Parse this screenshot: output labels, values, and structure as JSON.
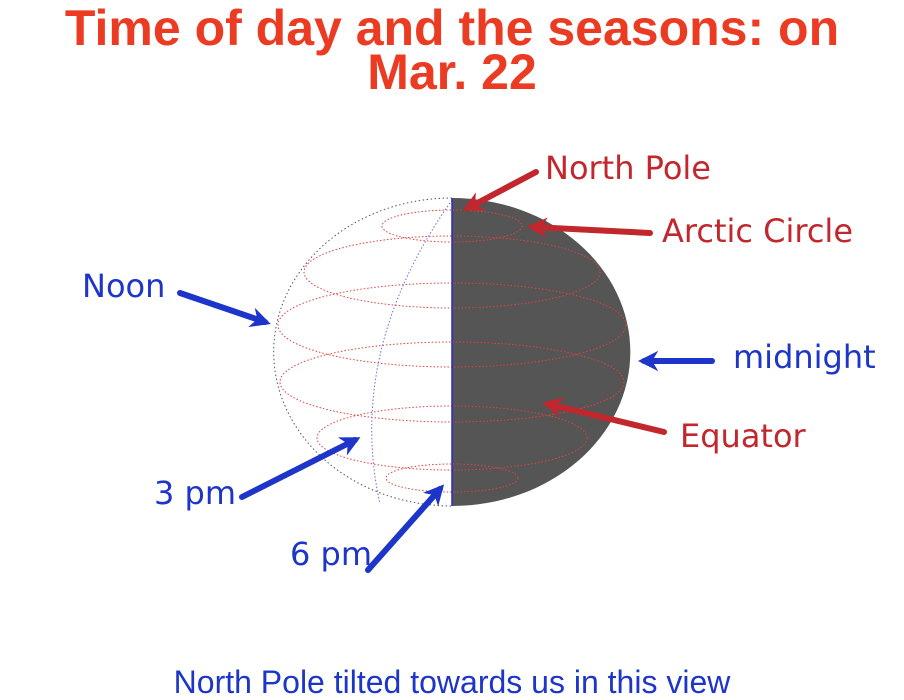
{
  "title": {
    "line1": "Time of day and the seasons:  on",
    "line2": "Mar. 22"
  },
  "labels": {
    "north_pole": "North Pole",
    "arctic_circle": "Arctic Circle",
    "noon": "Noon",
    "midnight": "midnight",
    "equator": "Equator",
    "three_pm": "3 pm",
    "six_pm": "6 pm"
  },
  "caption": "North Pole tilted towards us in this view",
  "colors": {
    "title": "#ec3b23",
    "red_label": "#c1272d",
    "blue_label": "#1d35c8",
    "night_side": "#555555"
  }
}
